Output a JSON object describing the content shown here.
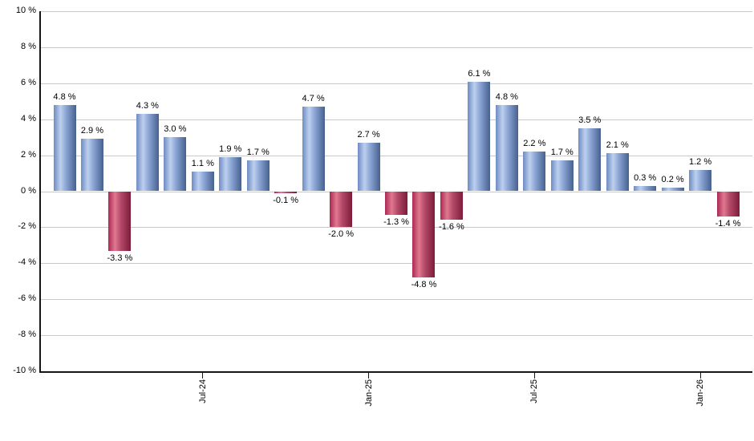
{
  "chart_data": {
    "type": "bar",
    "values": [
      4.8,
      2.9,
      -3.3,
      4.3,
      3.0,
      1.1,
      1.9,
      1.7,
      -0.1,
      4.7,
      -2.0,
      2.7,
      -1.3,
      -4.8,
      -1.6,
      6.1,
      4.8,
      2.2,
      1.7,
      3.5,
      2.1,
      0.3,
      0.2,
      1.2,
      -1.4
    ],
    "bar_labels": [
      "4.8 %",
      "2.9 %",
      "-3.3 %",
      "4.3 %",
      "3.0 %",
      "1.1 %",
      "1.9 %",
      "1.7 %",
      "-0.1 %",
      "4.7 %",
      "-2.0 %",
      "2.7 %",
      "-1.3 %",
      "-4.8 %",
      "-1.6 %",
      "6.1 %",
      "4.8 %",
      "2.2 %",
      "1.7 %",
      "3.5 %",
      "2.1 %",
      "0.3 %",
      "0.2 %",
      "1.2 %",
      "-1.4 %"
    ],
    "x_tick_labels": [
      "Jul-24",
      "Jan-25",
      "Jul-25",
      "Jan-26"
    ],
    "x_tick_bar_indices": [
      5,
      11,
      17,
      23
    ],
    "y_tick_labels": [
      "10 %",
      "8 %",
      "6 %",
      "4 %",
      "2 %",
      "0 %",
      "-2 %",
      "-4 %",
      "-6 %",
      "-8 %",
      "-10 %"
    ],
    "y_tick_values": [
      10,
      8,
      6,
      4,
      2,
      0,
      -2,
      -4,
      -6,
      -8,
      -10
    ],
    "ylim": [
      -10,
      10
    ],
    "grid": true,
    "legend_position": "none",
    "colors": {
      "positive_bar_stops": [
        "#6d8cc3",
        "#bdd0ee",
        "#8aa5d4",
        "#46618e"
      ],
      "negative_bar_stops": [
        "#ab2854",
        "#e0798f",
        "#b54a6a",
        "#7d1c3a"
      ],
      "gridline": "#c9c9c9",
      "axis": "#161616",
      "label_text": "#000000"
    }
  }
}
